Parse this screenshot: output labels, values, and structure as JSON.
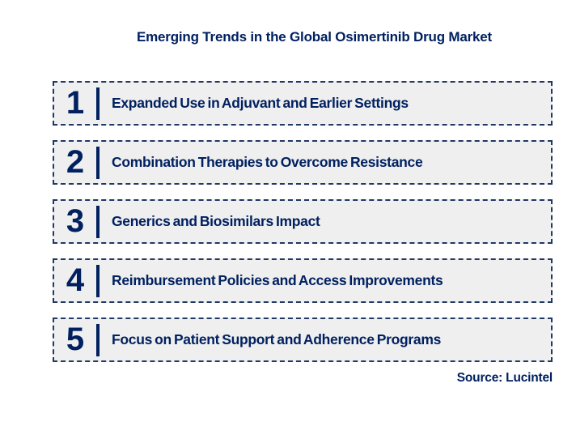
{
  "title": "Emerging Trends in the Global Osimertinib Drug Market",
  "source": "Source: Lucintel",
  "colors": {
    "navy_text": "#002060",
    "box_border": "#203864",
    "box_fill": "#efefef",
    "background": "#ffffff"
  },
  "trends": [
    {
      "number": "1",
      "label": "Expanded Use in Adjuvant and Earlier Settings"
    },
    {
      "number": "2",
      "label": "Combination Therapies to Overcome Resistance"
    },
    {
      "number": "3",
      "label": "Generics and Biosimilars Impact"
    },
    {
      "number": "4",
      "label": "Reimbursement Policies and Access Improvements"
    },
    {
      "number": "5",
      "label": "Focus on Patient Support and Adherence Programs"
    }
  ]
}
